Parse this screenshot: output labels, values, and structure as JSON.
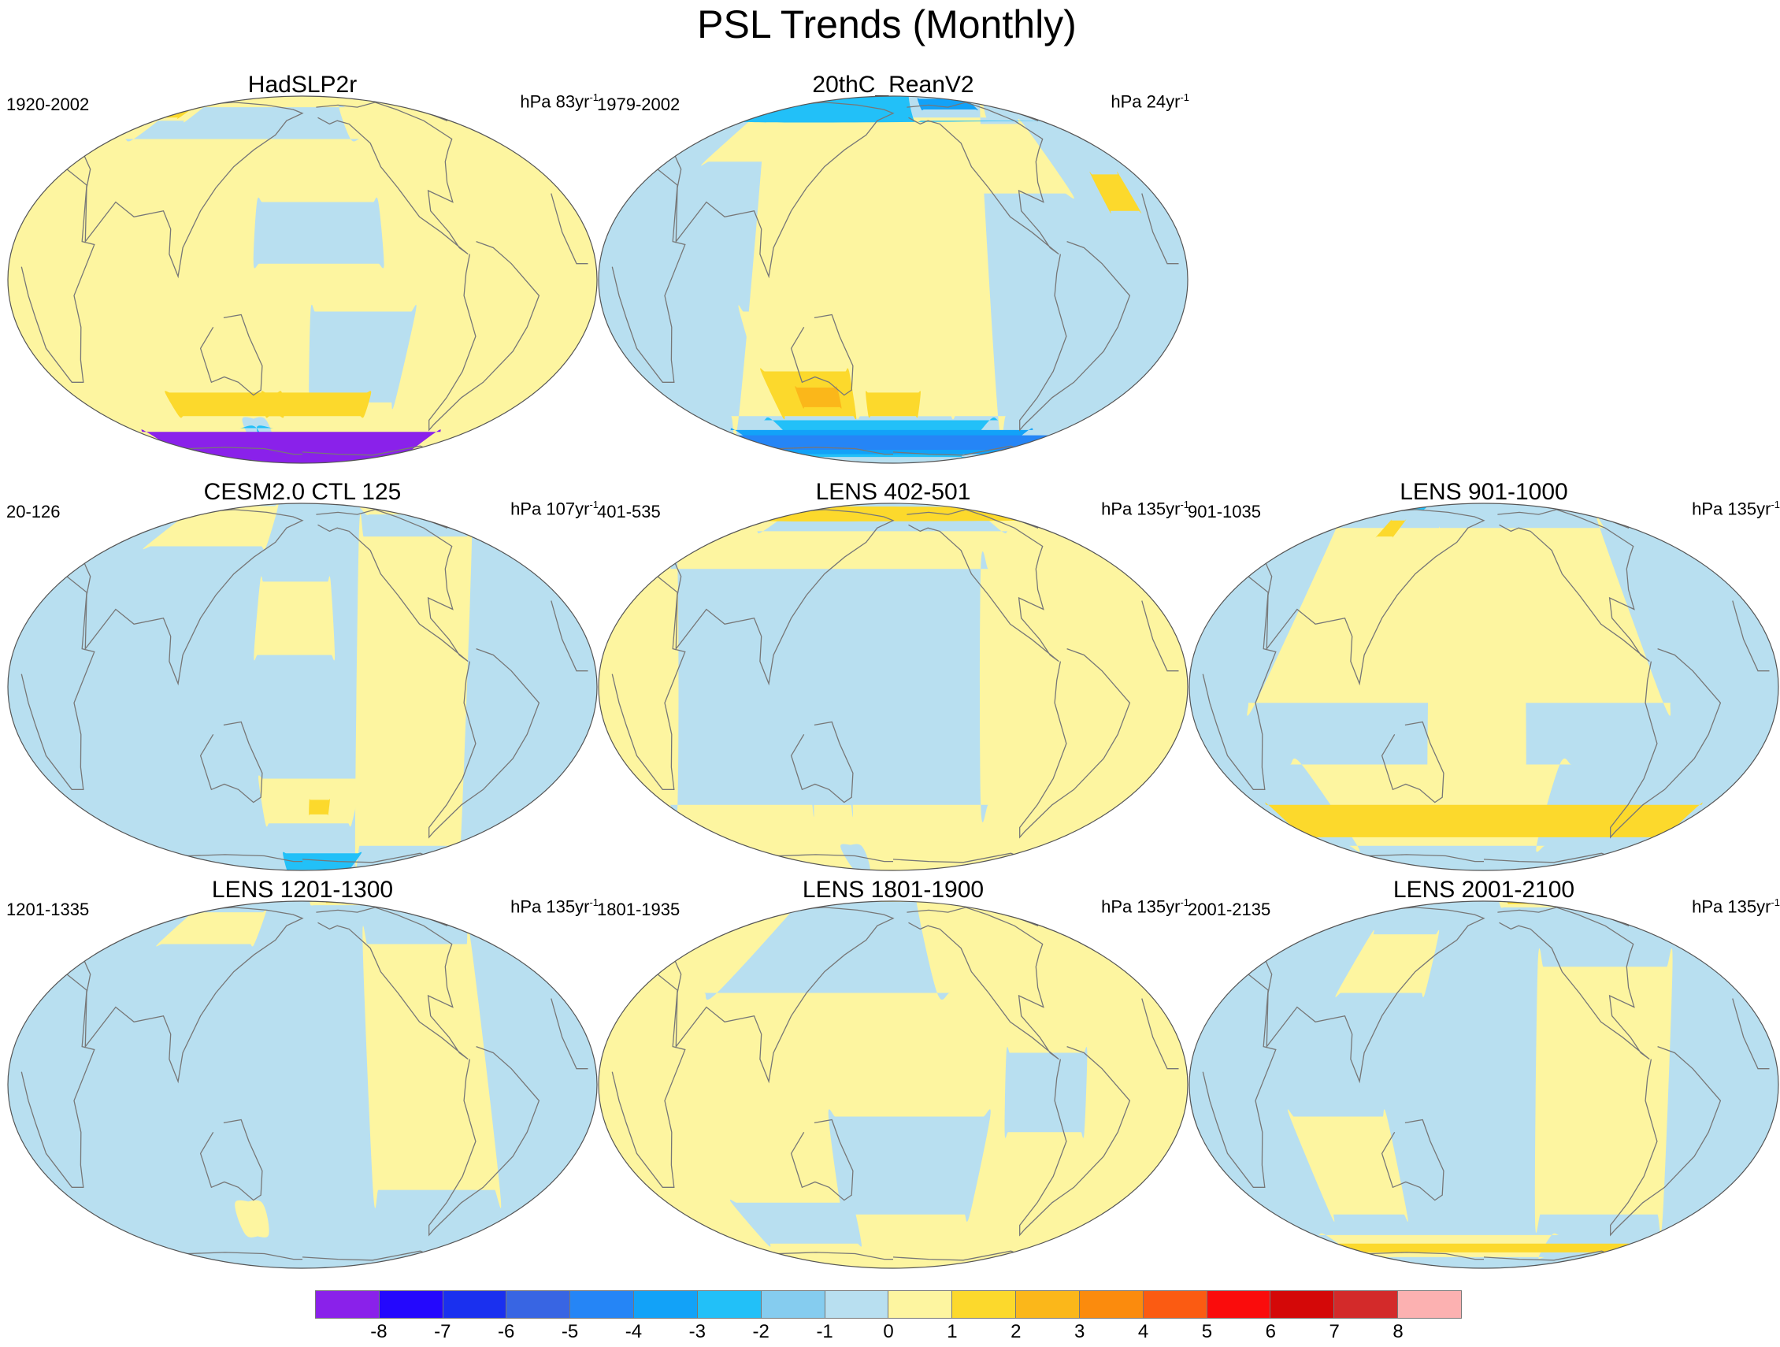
{
  "title": "PSL Trends (Monthly)",
  "colors": {
    "ocean_neg": "#b8dff0",
    "ocean_pos": "#fdf5a0",
    "coast": "#777777"
  },
  "panels": [
    {
      "title": "HadSLP2r",
      "years": "1920-2002",
      "units": "hPa 83yr",
      "units_exp": "-1",
      "base": "pos",
      "blobs": [
        {
          "c": "neg",
          "k": "band",
          "lat": [
            -10,
            -42
          ],
          "lon": [
            -175,
            -110
          ]
        },
        {
          "c": "neg",
          "k": "band",
          "lat": [
            25,
            5
          ],
          "lon": [
            150,
            230
          ]
        },
        {
          "c": "neg",
          "k": "band",
          "lat": [
            70,
            50
          ],
          "lon": [
            -140,
            40
          ]
        },
        {
          "c": "pos",
          "k": "band",
          "lat": [
            82,
            60
          ],
          "lon": [
            10,
            70
          ]
        },
        {
          "c": "c2",
          "k": "band",
          "lat": [
            80,
            62
          ],
          "lon": [
            15,
            60
          ]
        },
        {
          "c": "c2",
          "k": "band",
          "lat": [
            -38,
            -48
          ],
          "lon": [
            -210,
            -130
          ]
        },
        {
          "c": "c2",
          "k": "band",
          "lat": [
            -38,
            -48
          ],
          "lon": [
            80,
            165
          ]
        },
        {
          "c": "neg",
          "k": "band",
          "lat": [
            -50,
            -90
          ],
          "lon": [
            -230,
            150
          ]
        },
        {
          "c": "n2",
          "k": "band",
          "lat": [
            -54,
            -90
          ],
          "lon": [
            -220,
            140
          ]
        },
        {
          "c": "n3",
          "k": "band",
          "lat": [
            -58,
            -90
          ],
          "lon": [
            -210,
            130
          ]
        },
        {
          "c": "n5",
          "k": "band",
          "lat": [
            -62,
            -90
          ],
          "lon": [
            -200,
            120
          ]
        },
        {
          "c": "n6",
          "k": "band",
          "lat": [
            -66,
            -90
          ],
          "lon": [
            -190,
            110
          ]
        },
        {
          "c": "n8",
          "k": "band",
          "lat": [
            -56,
            -90
          ],
          "lon": [
            -60,
            40
          ]
        }
      ]
    },
    {
      "title": "20thC_ReanV2",
      "years": "1979-2002",
      "units": "hPa 24yr",
      "units_exp": "-1",
      "base": "neg",
      "blobs": [
        {
          "c": "pos",
          "k": "band",
          "lat": [
            62,
            -48
          ],
          "lon": [
            -95,
            55
          ]
        },
        {
          "c": "pos",
          "k": "band",
          "lat": [
            58,
            28
          ],
          "lon": [
            -170,
            -60
          ]
        },
        {
          "c": "pos",
          "k": "band",
          "lat": [
            70,
            40
          ],
          "lon": [
            40,
            110
          ]
        },
        {
          "c": "pos",
          "k": "band",
          "lat": [
            -10,
            -40
          ],
          "lon": [
            85,
            140
          ]
        },
        {
          "c": "pos",
          "k": "band",
          "lat": [
            -30,
            -48
          ],
          "lon": [
            -210,
            -130
          ]
        },
        {
          "c": "c2",
          "k": "band",
          "lat": [
            -38,
            -48
          ],
          "lon": [
            -200,
            -160
          ]
        },
        {
          "c": "c2",
          "k": "band",
          "lat": [
            35,
            22
          ],
          "lon": [
            -40,
            -20
          ]
        },
        {
          "c": "c2",
          "k": "band",
          "lat": [
            -30,
            -48
          ],
          "lon": [
            90,
            150
          ]
        },
        {
          "c": "c3",
          "k": "band",
          "lat": [
            -36,
            -44
          ],
          "lon": [
            110,
            140
          ]
        },
        {
          "c": "n2",
          "k": "band",
          "lat": [
            85,
            60
          ],
          "lon": [
            -160,
            0
          ]
        },
        {
          "c": "n3",
          "k": "band",
          "lat": [
            80,
            68
          ],
          "lon": [
            -150,
            -90
          ]
        },
        {
          "c": "n2",
          "k": "band",
          "lat": [
            -50,
            -75
          ],
          "lon": [
            -100,
            80
          ]
        },
        {
          "c": "n3",
          "k": "band",
          "lat": [
            -55,
            -72
          ],
          "lon": [
            -60,
            40
          ]
        },
        {
          "c": "n4",
          "k": "band",
          "lat": [
            -58,
            -68
          ],
          "lon": [
            -30,
            10
          ]
        }
      ]
    },
    {
      "title": "CESM2.0 CTL 125",
      "years": "20-126",
      "units": "hPa 107yr",
      "units_exp": "-1",
      "base": "neg",
      "blobs": [
        {
          "c": "pos",
          "k": "band",
          "lat": [
            55,
            -60
          ],
          "lon": [
            -130,
            -30
          ]
        },
        {
          "c": "pos",
          "k": "band",
          "lat": [
            85,
            70
          ],
          "lon": [
            -110,
            -40
          ]
        },
        {
          "c": "c2",
          "k": "band",
          "lat": [
            90,
            78
          ],
          "lon": [
            -100,
            -50
          ]
        },
        {
          "c": "pos",
          "k": "band",
          "lat": [
            35,
            10
          ],
          "lon": [
            -210,
            -160
          ]
        },
        {
          "c": "pos",
          "k": "band",
          "lat": [
            80,
            50
          ],
          "lon": [
            50,
            150
          ]
        },
        {
          "c": "pos",
          "k": "band",
          "lat": [
            -30,
            -48
          ],
          "lon": [
            -210,
            -140
          ]
        },
        {
          "c": "c2",
          "k": "band",
          "lat": [
            -38,
            -44
          ],
          "lon": [
            -175,
            -160
          ]
        },
        {
          "c": "n2",
          "k": "band",
          "lat": [
            -65,
            -85
          ],
          "lon": [
            -200,
            -120
          ]
        }
      ]
    },
    {
      "title": "LENS 402-501",
      "years": "401-535",
      "units": "hPa 135yr",
      "units_exp": "-1",
      "base": "pos",
      "blobs": [
        {
          "c": "neg",
          "k": "band",
          "lat": [
            40,
            -40
          ],
          "lon": [
            -115,
            20
          ]
        },
        {
          "c": "neg",
          "k": "band",
          "lat": [
            90,
            58
          ],
          "lon": [
            -80,
            60
          ]
        },
        {
          "c": "neg",
          "k": "band",
          "lat": [
            -60,
            -90
          ],
          "lon": [
            -230,
            150
          ]
        },
        {
          "c": "neg",
          "k": "band",
          "lat": [
            15,
            -40
          ],
          "lon": [
            120,
            150
          ]
        },
        {
          "c": "c2",
          "k": "band",
          "lat": [
            78,
            65
          ],
          "lon": [
            -15,
            0
          ]
        }
      ]
    },
    {
      "title": "LENS 901-1000",
      "years": "901-1035",
      "units": "hPa 135yr",
      "units_exp": "-1",
      "base": "neg",
      "blobs": [
        {
          "c": "pos",
          "k": "band",
          "lat": [
            60,
            -5
          ],
          "lon": [
            -70,
            40
          ]
        },
        {
          "c": "pos",
          "k": "band",
          "lat": [
            -25,
            -60
          ],
          "lon": [
            -130,
            60
          ]
        },
        {
          "c": "pos",
          "k": "band",
          "lat": [
            40,
            -35
          ],
          "lon": [
            -220,
            -150
          ]
        },
        {
          "c": "pos",
          "k": "band",
          "lat": [
            55,
            5
          ],
          "lon": [
            90,
            140
          ]
        },
        {
          "c": "c2",
          "k": "band",
          "lat": [
            -40,
            -55
          ],
          "lon": [
            -20,
            20
          ]
        },
        {
          "c": "c2",
          "k": "band",
          "lat": [
            65,
            55
          ],
          "lon": [
            85,
            100
          ]
        },
        {
          "c": "n2",
          "k": "band",
          "lat": [
            88,
            75
          ],
          "lon": [
            70,
            110
          ]
        }
      ]
    },
    {
      "title": "LENS 1201-1300",
      "years": "1201-1335",
      "units": "hPa 135yr",
      "units_exp": "-1",
      "base": "neg",
      "blobs": [
        {
          "c": "pos",
          "k": "band",
          "lat": [
            50,
            -35
          ],
          "lon": [
            -130,
            -40
          ]
        },
        {
          "c": "pos",
          "k": "band",
          "lat": [
            90,
            78
          ],
          "lon": [
            -170,
            -50
          ]
        },
        {
          "c": "c2",
          "k": "band",
          "lat": [
            90,
            82
          ],
          "lon": [
            -150,
            -110
          ]
        },
        {
          "c": "pos",
          "k": "band",
          "lat": [
            -40,
            -55
          ],
          "lon": [
            -230,
            150
          ]
        },
        {
          "c": "pos",
          "k": "band",
          "lat": [
            70,
            50
          ],
          "lon": [
            60,
            140
          ]
        }
      ]
    },
    {
      "title": "LENS 1801-1900",
      "years": "1801-1935",
      "units": "hPa 135yr",
      "units_exp": "-1",
      "base": "pos",
      "blobs": [
        {
          "c": "neg",
          "k": "band",
          "lat": [
            85,
            30
          ],
          "lon": [
            -150,
            60
          ]
        },
        {
          "c": "neg",
          "k": "band",
          "lat": [
            -10,
            -45
          ],
          "lon": [
            -220,
            -120
          ]
        },
        {
          "c": "neg",
          "k": "band",
          "lat": [
            10,
            -15
          ],
          "lon": [
            -110,
            -60
          ]
        },
        {
          "c": "neg",
          "k": "band",
          "lat": [
            -40,
            -60
          ],
          "lon": [
            60,
            150
          ]
        }
      ]
    },
    {
      "title": "LENS 2001-2100",
      "years": "2001-2135",
      "units": "hPa 135yr",
      "units_exp": "-1",
      "base": "neg",
      "blobs": [
        {
          "c": "pos",
          "k": "band",
          "lat": [
            40,
            -45
          ],
          "lon": [
            -140,
            -40
          ]
        },
        {
          "c": "pos",
          "k": "band",
          "lat": [
            90,
            75
          ],
          "lon": [
            -160,
            -80
          ]
        },
        {
          "c": "c2",
          "k": "band",
          "lat": [
            90,
            80
          ],
          "lon": [
            -150,
            -110
          ]
        },
        {
          "c": "pos",
          "k": "band",
          "lat": [
            -55,
            -70
          ],
          "lon": [
            -120,
            40
          ]
        },
        {
          "c": "c2",
          "k": "band",
          "lat": [
            -60,
            -66
          ],
          "lon": [
            -10,
            10
          ]
        },
        {
          "c": "pos",
          "k": "band",
          "lat": [
            -10,
            -45
          ],
          "lon": [
            60,
            120
          ]
        },
        {
          "c": "pos",
          "k": "band",
          "lat": [
            55,
            30
          ],
          "lon": [
            80,
            140
          ]
        }
      ]
    }
  ],
  "colorbar": {
    "colors": [
      "#8a21ea",
      "#2408fd",
      "#1a30ef",
      "#3865e3",
      "#2585f6",
      "#12a2f8",
      "#22c0f8",
      "#85ccef",
      "#b8dff0",
      "#fdf5a0",
      "#fcd92c",
      "#fbb71a",
      "#fb8b0d",
      "#fb5b12",
      "#fa0c0c",
      "#d40808",
      "#d32a2a",
      "#fcb1b1"
    ],
    "labels": [
      "-8",
      "-7",
      "-6",
      "-5",
      "-4",
      "-3",
      "-2",
      "-1",
      "0",
      "1",
      "2",
      "3",
      "4",
      "5",
      "6",
      "7",
      "8"
    ]
  }
}
